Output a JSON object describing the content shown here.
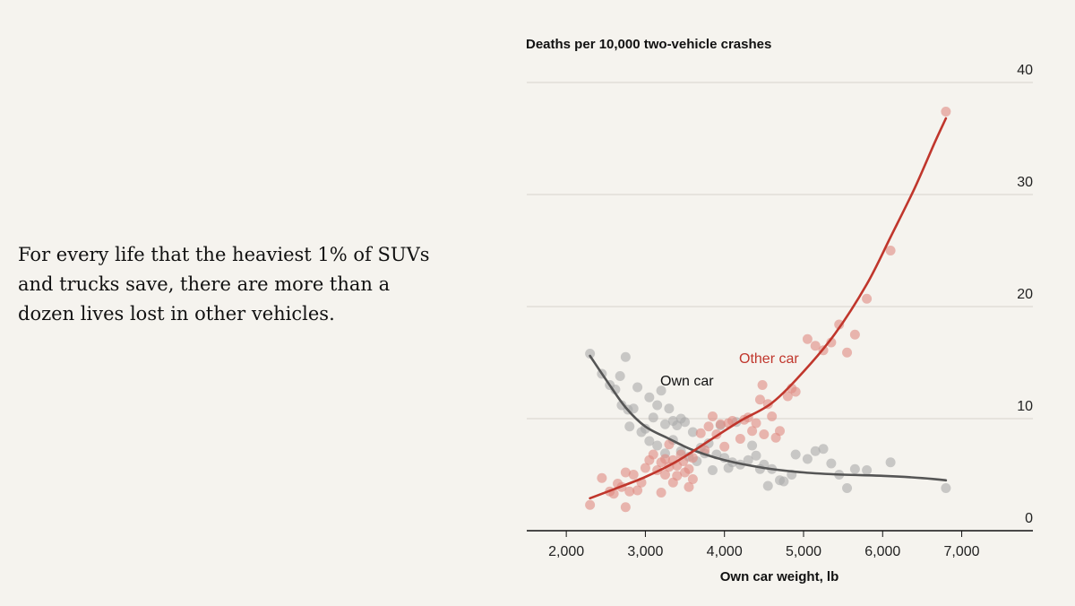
{
  "caption": "For every life that the heaviest 1% of SUVs and trucks save, there are more than a dozen lives lost in other vehicles.",
  "chart_data": {
    "type": "scatter",
    "title": "Deaths per 10,000 two-vehicle crashes",
    "xlabel": "Own car weight, lb",
    "ylabel": "",
    "xlim": [
      1500,
      7900
    ],
    "ylim": [
      0,
      40
    ],
    "x_ticks": [
      2000,
      3000,
      4000,
      5000,
      6000,
      7000
    ],
    "x_tick_labels": [
      "2,000",
      "3,000",
      "4,000",
      "5,000",
      "6,000",
      "7,000"
    ],
    "y_ticks": [
      0,
      10,
      20,
      30,
      40
    ],
    "y_tick_labels": [
      "0",
      "10",
      "20",
      "30",
      "40"
    ],
    "grid": true,
    "series": [
      {
        "name": "Own car",
        "color": "#555555",
        "point_color": "#aaaaaa",
        "points": [
          [
            2300,
            15.8
          ],
          [
            2450,
            14
          ],
          [
            2550,
            13
          ],
          [
            2620,
            12.6
          ],
          [
            2680,
            13.8
          ],
          [
            2750,
            15.5
          ],
          [
            2700,
            11.2
          ],
          [
            2780,
            10.8
          ],
          [
            2850,
            10.9
          ],
          [
            2900,
            12.8
          ],
          [
            2800,
            9.3
          ],
          [
            2950,
            8.8
          ],
          [
            3000,
            9.1
          ],
          [
            3050,
            11.9
          ],
          [
            3150,
            11.2
          ],
          [
            3200,
            12.5
          ],
          [
            3100,
            10.1
          ],
          [
            3250,
            9.5
          ],
          [
            3300,
            10.9
          ],
          [
            3350,
            9.8
          ],
          [
            3400,
            9.4
          ],
          [
            3450,
            10
          ],
          [
            3500,
            9.7
          ],
          [
            3050,
            8
          ],
          [
            3150,
            7.6
          ],
          [
            3250,
            6.9
          ],
          [
            3350,
            8.1
          ],
          [
            3450,
            7.1
          ],
          [
            3550,
            6.6
          ],
          [
            3600,
            8.8
          ],
          [
            3650,
            6.2
          ],
          [
            3700,
            7.4
          ],
          [
            3750,
            6.9
          ],
          [
            3800,
            7.8
          ],
          [
            3900,
            6.8
          ],
          [
            3950,
            9.4
          ],
          [
            4000,
            6.5
          ],
          [
            4100,
            6.1
          ],
          [
            4150,
            9.7
          ],
          [
            4200,
            5.9
          ],
          [
            4300,
            6.3
          ],
          [
            4350,
            7.6
          ],
          [
            4400,
            6.7
          ],
          [
            4450,
            5.5
          ],
          [
            4500,
            5.9
          ],
          [
            4550,
            4
          ],
          [
            4600,
            5.5
          ],
          [
            4700,
            4.5
          ],
          [
            4750,
            4.4
          ],
          [
            4850,
            5
          ],
          [
            4900,
            6.8
          ],
          [
            5050,
            6.4
          ],
          [
            5150,
            7.1
          ],
          [
            5250,
            7.3
          ],
          [
            5350,
            6
          ],
          [
            5450,
            5
          ],
          [
            5550,
            3.8
          ],
          [
            5650,
            5.5
          ],
          [
            5800,
            5.4
          ],
          [
            6100,
            6.1
          ],
          [
            6800,
            3.8
          ],
          [
            3850,
            5.4
          ],
          [
            4050,
            5.6
          ]
        ],
        "curve": [
          [
            2300,
            15.6
          ],
          [
            2500,
            13.5
          ],
          [
            2750,
            11
          ],
          [
            3000,
            9.3
          ],
          [
            3300,
            8.2
          ],
          [
            3600,
            7.2
          ],
          [
            4000,
            6.3
          ],
          [
            4500,
            5.6
          ],
          [
            5000,
            5.2
          ],
          [
            5500,
            5
          ],
          [
            6000,
            4.9
          ],
          [
            6500,
            4.7
          ],
          [
            6800,
            4.5
          ]
        ]
      },
      {
        "name": "Other car",
        "color": "#c0362c",
        "point_color": "#df8a82",
        "points": [
          [
            2300,
            2.3
          ],
          [
            2450,
            4.7
          ],
          [
            2550,
            3.5
          ],
          [
            2600,
            3.3
          ],
          [
            2650,
            4.2
          ],
          [
            2700,
            3.9
          ],
          [
            2750,
            2.1
          ],
          [
            2750,
            5.2
          ],
          [
            2800,
            3.5
          ],
          [
            2850,
            5
          ],
          [
            2900,
            3.6
          ],
          [
            2950,
            4.3
          ],
          [
            3000,
            5.6
          ],
          [
            3050,
            6.3
          ],
          [
            3100,
            6.8
          ],
          [
            3150,
            5.4
          ],
          [
            3200,
            3.4
          ],
          [
            3250,
            6.4
          ],
          [
            3300,
            7.7
          ],
          [
            3350,
            4.3
          ],
          [
            3400,
            5.8
          ],
          [
            3450,
            6.8
          ],
          [
            3500,
            5.2
          ],
          [
            3550,
            3.9
          ],
          [
            3600,
            6.5
          ],
          [
            3700,
            8.7
          ],
          [
            3750,
            7.2
          ],
          [
            3800,
            9.3
          ],
          [
            3850,
            10.2
          ],
          [
            3900,
            8.6
          ],
          [
            3950,
            9.5
          ],
          [
            4000,
            7.5
          ],
          [
            4050,
            9.6
          ],
          [
            4100,
            9.8
          ],
          [
            4200,
            8.2
          ],
          [
            4250,
            9.9
          ],
          [
            4300,
            10.1
          ],
          [
            4350,
            8.9
          ],
          [
            4400,
            9.6
          ],
          [
            4450,
            11.7
          ],
          [
            4480,
            13
          ],
          [
            4500,
            8.6
          ],
          [
            4550,
            11.3
          ],
          [
            4600,
            10.2
          ],
          [
            4650,
            8.3
          ],
          [
            4700,
            8.9
          ],
          [
            4800,
            12
          ],
          [
            4850,
            12.7
          ],
          [
            4900,
            12.4
          ],
          [
            5050,
            17.1
          ],
          [
            5150,
            16.5
          ],
          [
            5250,
            16.1
          ],
          [
            5350,
            16.8
          ],
          [
            5450,
            18.4
          ],
          [
            5550,
            15.9
          ],
          [
            5650,
            17.5
          ],
          [
            5800,
            20.7
          ],
          [
            6100,
            25
          ],
          [
            6800,
            37.4
          ],
          [
            3200,
            6.1
          ],
          [
            3300,
            5.7
          ],
          [
            3400,
            4.9
          ],
          [
            3480,
            6.2
          ],
          [
            3550,
            5.5
          ],
          [
            3600,
            4.6
          ],
          [
            3350,
            6.3
          ],
          [
            3250,
            5
          ]
        ],
        "curve": [
          [
            2300,
            2.9
          ],
          [
            2600,
            3.7
          ],
          [
            3000,
            4.8
          ],
          [
            3400,
            6.2
          ],
          [
            3800,
            8
          ],
          [
            4200,
            9.8
          ],
          [
            4600,
            11.4
          ],
          [
            5000,
            14.2
          ],
          [
            5400,
            17.6
          ],
          [
            5800,
            22
          ],
          [
            6100,
            26.2
          ],
          [
            6400,
            30.5
          ],
          [
            6650,
            34.5
          ],
          [
            6800,
            36.8
          ]
        ]
      }
    ]
  }
}
